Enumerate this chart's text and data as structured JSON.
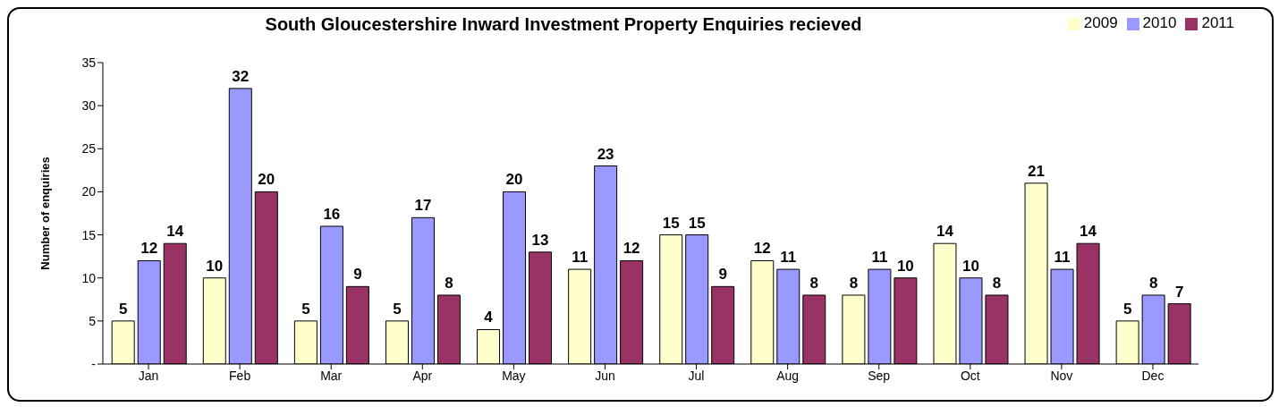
{
  "chart_data": {
    "type": "bar",
    "title": "South Gloucestershire Inward Investment Property Enquiries recieved",
    "ylabel": "Number of enquiries",
    "categories": [
      "Jan",
      "Feb",
      "Mar",
      "Apr",
      "May",
      "Jun",
      "Jul",
      "Aug",
      "Sep",
      "Oct",
      "Nov",
      "Dec"
    ],
    "series": [
      {
        "name": "2009",
        "color": "#ffffcc",
        "values": [
          5,
          10,
          5,
          5,
          4,
          11,
          15,
          12,
          8,
          14,
          21,
          5
        ]
      },
      {
        "name": "2010",
        "color": "#9999ff",
        "values": [
          12,
          32,
          16,
          17,
          20,
          23,
          15,
          11,
          11,
          10,
          11,
          8
        ]
      },
      {
        "name": "2011",
        "color": "#993366",
        "values": [
          14,
          20,
          9,
          8,
          13,
          12,
          9,
          8,
          10,
          8,
          14,
          7
        ]
      }
    ],
    "ylim": [
      0,
      35
    ],
    "yticks": [
      {
        "value": 0,
        "label": "-"
      },
      5,
      10,
      15,
      20,
      25,
      30,
      35
    ],
    "grid": false,
    "legend": "top right",
    "data_labels": true
  }
}
